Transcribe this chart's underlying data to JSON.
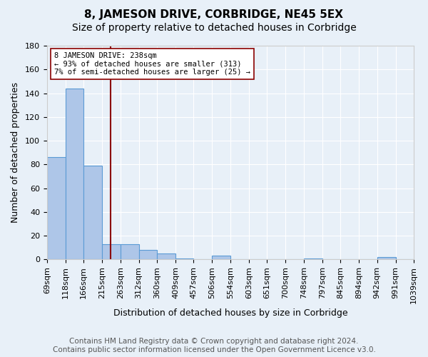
{
  "title": "8, JAMESON DRIVE, CORBRIDGE, NE45 5EX",
  "subtitle": "Size of property relative to detached houses in Corbridge",
  "xlabel": "Distribution of detached houses by size in Corbridge",
  "ylabel": "Number of detached properties",
  "footer_line1": "Contains HM Land Registry data © Crown copyright and database right 2024.",
  "footer_line2": "Contains public sector information licensed under the Open Government Licence v3.0.",
  "bar_edges": [
    69,
    118,
    166,
    215,
    263,
    312,
    360,
    409,
    457,
    506,
    554,
    603,
    651,
    700,
    748,
    797,
    845,
    894,
    942,
    991,
    1039
  ],
  "bar_heights": [
    86,
    144,
    79,
    13,
    13,
    8,
    5,
    1,
    0,
    3,
    0,
    0,
    0,
    0,
    1,
    0,
    0,
    0,
    2,
    0
  ],
  "bar_color": "#aec6e8",
  "bar_edge_color": "#5b9bd5",
  "property_size": 238,
  "property_line_color": "#8b0000",
  "annotation_text_line1": "8 JAMESON DRIVE: 238sqm",
  "annotation_text_line2": "← 93% of detached houses are smaller (313)",
  "annotation_text_line3": "7% of semi-detached houses are larger (25) →",
  "annotation_box_color": "#ffffff",
  "annotation_box_edge_color": "#8b0000",
  "ylim": [
    0,
    180
  ],
  "yticks": [
    0,
    20,
    40,
    60,
    80,
    100,
    120,
    140,
    160,
    180
  ],
  "bg_color": "#e8f0f8",
  "plot_bg_color": "#e8f0f8",
  "grid_color": "#ffffff",
  "title_fontsize": 11,
  "subtitle_fontsize": 10,
  "axis_label_fontsize": 9,
  "tick_fontsize": 8,
  "footer_fontsize": 7.5
}
